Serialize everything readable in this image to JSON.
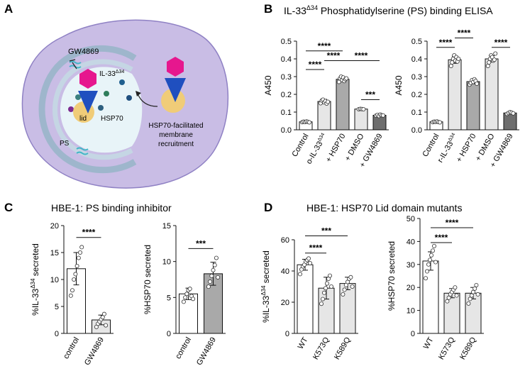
{
  "panels": {
    "A": {
      "letter": "A",
      "labels": {
        "inhibitor": "GW4869",
        "protein": "IL-33",
        "protein_sup": "Δ34",
        "lid": "lid",
        "chaperone": "HSP70",
        "lipid": "PS",
        "recruit_line1": "HSP70-facilitated",
        "recruit_line2": "membrane",
        "recruit_line3": "recruitment"
      }
    },
    "B": {
      "letter": "B",
      "title_main": "IL-33",
      "title_sup": "Δ34",
      "title_rest": " Phosphatidylserine (PS) binding ELISA"
    },
    "C": {
      "letter": "C",
      "title": "HBE-1: PS binding inhibitor"
    },
    "D": {
      "letter": "D",
      "title": "HBE-1: HSP70 Lid domain mutants"
    }
  },
  "colors": {
    "cell": "#c9bde5",
    "cell_edge": "#8f81c4",
    "vesicle": "#e8f4f8",
    "membrane": "#9eb6cc",
    "hexagon": "#e6178e",
    "triangle": "#1f4fbf",
    "lid": "#f0cc78",
    "lipid_tail": "#3fb6c6",
    "bar_white": "#ffffff",
    "bar_light": "#e6e6e6",
    "bar_mid": "#a9a9a9",
    "bar_dark": "#6e6e6e"
  },
  "chart_data": [
    {
      "id": "B1",
      "type": "bar",
      "categories": [
        "Control",
        "o-IL-33",
        "+ HSP70",
        "+ DMSO",
        "+ GW4869"
      ],
      "category_sup": [
        "",
        "Δ34",
        "",
        "",
        ""
      ],
      "values": [
        0.045,
        0.16,
        0.285,
        0.117,
        0.082
      ],
      "errors": [
        0.004,
        0.012,
        0.012,
        0.002,
        0.004
      ],
      "fills": [
        "white",
        "light",
        "mid",
        "light",
        "dark"
      ],
      "points": [
        [
          0.043,
          0.046,
          0.044,
          0.047,
          0.045,
          0.042
        ],
        [
          0.15,
          0.165,
          0.17,
          0.155,
          0.162,
          0.148,
          0.158
        ],
        [
          0.27,
          0.29,
          0.3,
          0.28,
          0.295,
          0.275,
          0.285,
          0.29
        ],
        [
          0.116,
          0.118,
          0.117,
          0.116
        ],
        [
          0.08,
          0.084,
          0.078,
          0.086,
          0.082,
          0.081
        ]
      ],
      "ylabel": "A450",
      "ylabel_sup": "",
      "ylabel_rest": "",
      "ylim": [
        0,
        0.5
      ],
      "yticks": [
        "0.0",
        "0.1",
        "0.2",
        "0.3",
        "0.4",
        "0.5"
      ],
      "brackets": [
        {
          "from": 0,
          "to": 2,
          "level": 0.445,
          "label": "****"
        },
        {
          "from": 0,
          "to": 1,
          "level": 0.34,
          "label": "****"
        },
        {
          "from": 1,
          "to": 2,
          "level": 0.39,
          "label": "****"
        },
        {
          "from": 2,
          "to": 4,
          "level": 0.39,
          "label": "****"
        },
        {
          "from": 3,
          "to": 4,
          "level": 0.17,
          "label": "***"
        }
      ]
    },
    {
      "id": "B2",
      "type": "bar",
      "categories": [
        "Control",
        "r-IL-33",
        "+ HSP70",
        "+ DMSO",
        "+ GW4869"
      ],
      "category_sup": [
        "",
        "Δ34",
        "",
        "",
        ""
      ],
      "values": [
        0.045,
        0.395,
        0.272,
        0.4,
        0.095
      ],
      "errors": [
        0.004,
        0.02,
        0.012,
        0.018,
        0.005
      ],
      "fills": [
        "white",
        "light",
        "mid",
        "light",
        "dark"
      ],
      "points": [
        [
          0.043,
          0.046,
          0.045,
          0.047,
          0.044,
          0.042
        ],
        [
          0.36,
          0.38,
          0.4,
          0.42,
          0.39,
          0.41,
          0.385,
          0.4
        ],
        [
          0.255,
          0.265,
          0.28,
          0.27,
          0.285,
          0.275,
          0.26
        ],
        [
          0.36,
          0.38,
          0.4,
          0.42,
          0.41,
          0.39,
          0.395,
          0.43
        ],
        [
          0.09,
          0.095,
          0.1,
          0.097,
          0.093
        ]
      ],
      "ylabel": "A450",
      "ylabel_sup": "",
      "ylabel_rest": "",
      "ylim": [
        0,
        0.5
      ],
      "yticks": [
        "0.0",
        "0.1",
        "0.2",
        "0.3",
        "0.4",
        "0.5"
      ],
      "brackets": [
        {
          "from": 0,
          "to": 1,
          "level": 0.465,
          "label": "****"
        },
        {
          "from": 1,
          "to": 2,
          "level": 0.518,
          "label": "****"
        },
        {
          "from": 3,
          "to": 4,
          "level": 0.465,
          "label": "****"
        }
      ]
    },
    {
      "id": "C1",
      "type": "bar",
      "categories": [
        "control",
        "GW4869"
      ],
      "category_sup": [
        "",
        ""
      ],
      "values": [
        12,
        2.5
      ],
      "errors": [
        3,
        0.9
      ],
      "fills": [
        "white",
        "light"
      ],
      "points": [
        [
          7,
          8,
          10,
          11,
          12.5,
          14,
          15,
          16
        ],
        [
          1.2,
          1.8,
          2.2,
          2.6,
          3,
          3.6,
          1.5
        ]
      ],
      "ylabel": "%IL-33",
      "ylabel_sup": "Δ34",
      "ylabel_rest": " secreted",
      "ylim": [
        0,
        20
      ],
      "yticks": [
        "0",
        "5",
        "10",
        "15",
        "20"
      ],
      "brackets": [
        {
          "from": 0,
          "to": 1,
          "level": 17.8,
          "label": "****"
        }
      ]
    },
    {
      "id": "C2",
      "type": "bar",
      "categories": [
        "control",
        "GW4869"
      ],
      "category_sup": [
        "",
        ""
      ],
      "values": [
        5.5,
        8.3
      ],
      "errors": [
        0.8,
        1.6
      ],
      "fills": [
        "white",
        "mid"
      ],
      "points": [
        [
          4.4,
          5,
          5.5,
          6,
          6.2,
          5.2,
          4.8
        ],
        [
          6.5,
          7.2,
          8,
          8.8,
          9.5,
          10.5,
          7.8
        ]
      ],
      "ylabel": "%HSP70 secreted",
      "ylabel_sup": "",
      "ylabel_rest": "",
      "ylim": [
        0,
        15
      ],
      "yticks": [
        "0",
        "5",
        "10",
        "15"
      ],
      "brackets": [
        {
          "from": 0,
          "to": 1,
          "level": 11.8,
          "label": "***"
        }
      ]
    },
    {
      "id": "D1",
      "type": "bar",
      "categories": [
        "WT",
        "K573Q",
        "K589Q"
      ],
      "category_sup": [
        "",
        "",
        ""
      ],
      "values": [
        44,
        29,
        32
      ],
      "errors": [
        3.5,
        7,
        4
      ],
      "fills": [
        "white",
        "light",
        "light"
      ],
      "points": [
        [
          38,
          41,
          43,
          44,
          46,
          47,
          48,
          45
        ],
        [
          19,
          22,
          26,
          29,
          32,
          35,
          37,
          30
        ],
        [
          25,
          28,
          31,
          33,
          35,
          36,
          30
        ]
      ],
      "ylabel": "%IL-33",
      "ylabel_sup": "Δ34",
      "ylabel_rest": " secreted",
      "ylim": [
        0,
        60
      ],
      "yticks": [
        "0",
        "20",
        "40",
        "60"
      ],
      "brackets": [
        {
          "from": 0,
          "to": 2,
          "level": 62.5,
          "label": "***"
        },
        {
          "from": 0,
          "to": 1,
          "level": 51.5,
          "label": "****"
        }
      ]
    },
    {
      "id": "D2",
      "type": "bar",
      "categories": [
        "WT",
        "K573Q",
        "K589Q"
      ],
      "category_sup": [
        "",
        "",
        ""
      ],
      "values": [
        31.5,
        17.5,
        17.5
      ],
      "errors": [
        4,
        2,
        2.5
      ],
      "fills": [
        "white",
        "light",
        "light"
      ],
      "points": [
        [
          24,
          27,
          30,
          32,
          34,
          36,
          38,
          31
        ],
        [
          14,
          15.5,
          17,
          18,
          19,
          20,
          16.5
        ],
        [
          13,
          15,
          16.5,
          18,
          19.5,
          21,
          17
        ]
      ],
      "ylabel": "%HSP70 secreted",
      "ylabel_sup": "",
      "ylabel_rest": "",
      "ylim": [
        0,
        50
      ],
      "yticks": [
        "0",
        "10",
        "20",
        "30",
        "40",
        "50"
      ],
      "brackets": [
        {
          "from": 0,
          "to": 2,
          "level": 46,
          "label": "****"
        },
        {
          "from": 0,
          "to": 1,
          "level": 39.5,
          "label": "****"
        }
      ]
    }
  ]
}
